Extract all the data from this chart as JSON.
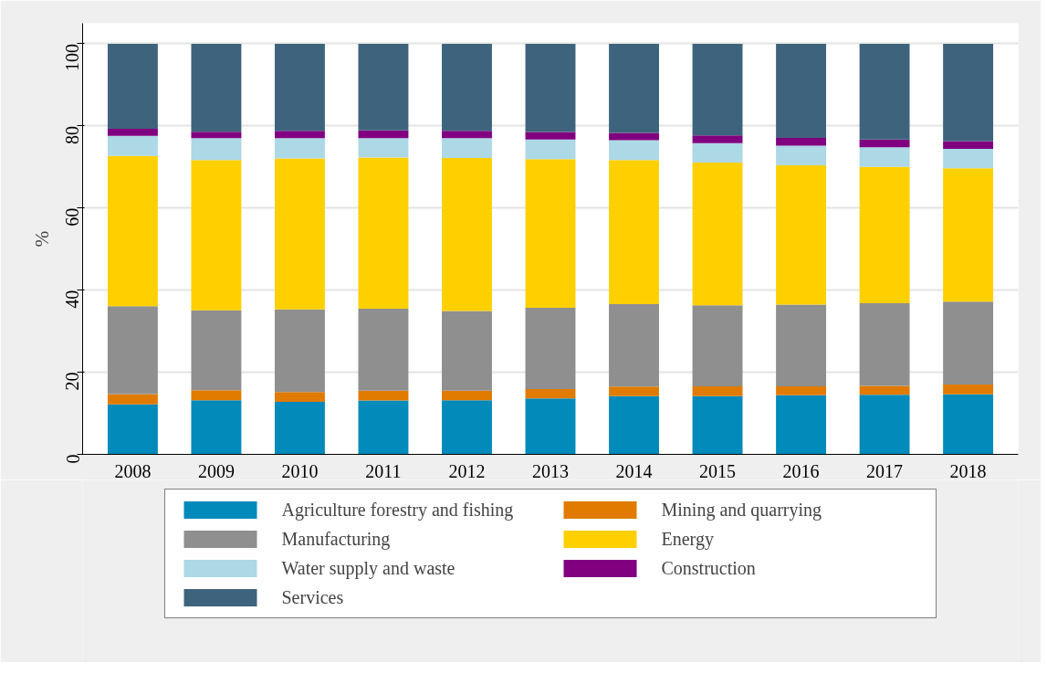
{
  "chart_data": {
    "type": "bar",
    "stacked": true,
    "ylabel": "%",
    "categories": [
      "2008",
      "2009",
      "2010",
      "2011",
      "2012",
      "2013",
      "2014",
      "2015",
      "2016",
      "2017",
      "2018"
    ],
    "series": [
      {
        "name": "Agriculture forestry and fishing",
        "color": "#028abb",
        "values": [
          12.2,
          13.2,
          12.8,
          13.1,
          13.2,
          13.6,
          14.2,
          14.2,
          14.4,
          14.5,
          14.6
        ]
      },
      {
        "name": "Mining and quarrying",
        "color": "#e07b00",
        "values": [
          2.5,
          2.4,
          2.4,
          2.4,
          2.3,
          2.3,
          2.3,
          2.4,
          2.2,
          2.2,
          2.4
        ]
      },
      {
        "name": "Manufacturing",
        "color": "#8f8f8f",
        "values": [
          21.4,
          19.5,
          20.1,
          20.0,
          19.4,
          19.8,
          20.1,
          19.7,
          19.9,
          20.1,
          20.2
        ]
      },
      {
        "name": "Energy",
        "color": "#fed000",
        "values": [
          36.6,
          36.6,
          36.8,
          36.8,
          37.3,
          36.2,
          35.1,
          34.8,
          33.9,
          33.2,
          32.5
        ]
      },
      {
        "name": "Water supply and waste",
        "color": "#add8e5",
        "values": [
          4.9,
          5.3,
          4.9,
          4.7,
          4.8,
          4.8,
          4.8,
          4.7,
          4.8,
          4.8,
          4.7
        ]
      },
      {
        "name": "Construction",
        "color": "#800080",
        "values": [
          1.7,
          1.6,
          1.8,
          1.9,
          1.8,
          1.8,
          1.8,
          1.9,
          1.9,
          1.9,
          1.9
        ]
      },
      {
        "name": "Services",
        "color": "#3e647d",
        "values": [
          20.7,
          21.4,
          21.2,
          21.1,
          21.2,
          21.5,
          21.7,
          22.3,
          22.9,
          23.3,
          23.7
        ]
      }
    ],
    "ylim": [
      0,
      105
    ],
    "yticks": [
      0,
      20,
      40,
      60,
      80,
      100
    ],
    "grid": "y",
    "legend": "bottom"
  }
}
